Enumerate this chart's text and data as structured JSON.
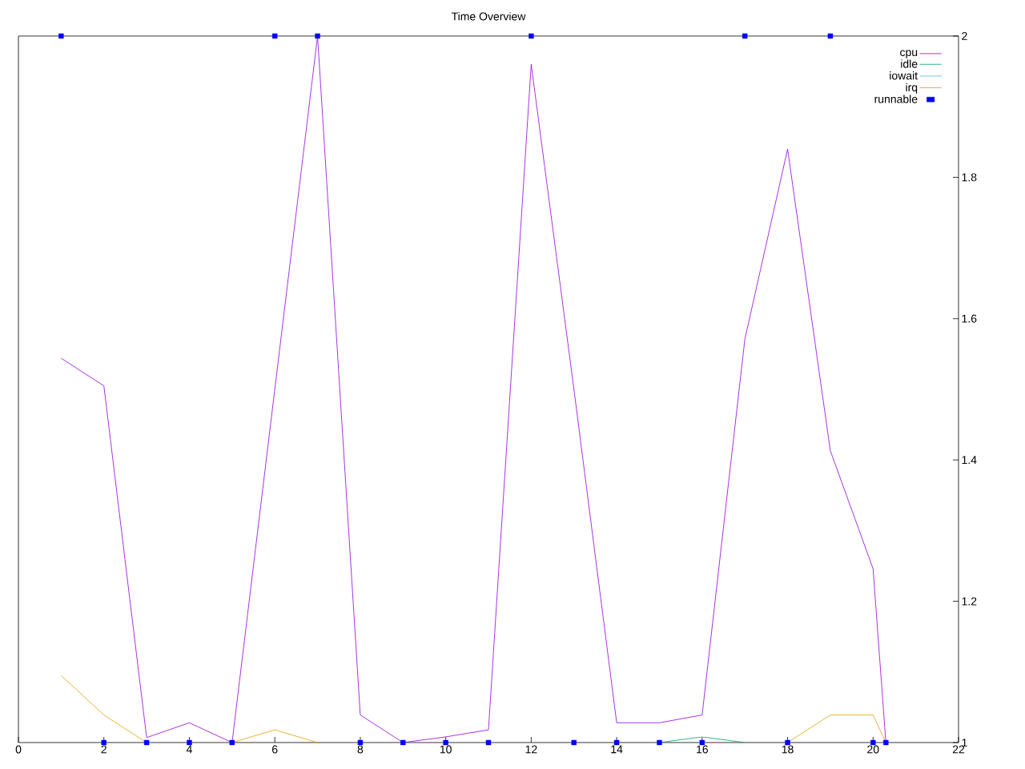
{
  "chart_data": {
    "type": "line",
    "title": "Time Overview",
    "xlim": [
      0,
      22
    ],
    "xticks": [
      0,
      2,
      4,
      6,
      8,
      10,
      12,
      14,
      16,
      18,
      20,
      22
    ],
    "ylim": [
      1,
      2
    ],
    "yticks": [
      1,
      1.2,
      1.4,
      1.6,
      1.8,
      2
    ],
    "grid": false,
    "legend": "top right",
    "series": [
      {
        "name": "cpu",
        "color": "#9400d3",
        "x": [
          1,
          2,
          3,
          4,
          5,
          6,
          7,
          8,
          9,
          10,
          11,
          12,
          13,
          14,
          15,
          16,
          17,
          18,
          19,
          20,
          20.3
        ],
        "values": [
          1.544,
          1.505,
          1.007,
          1.028,
          1.0,
          1.5,
          2.0,
          1.039,
          1.0,
          1.008,
          1.018,
          1.96,
          1.5,
          1.028,
          1.028,
          1.039,
          1.571,
          1.84,
          1.413,
          1.246,
          1.0
        ]
      },
      {
        "name": "idle",
        "color": "#009e73",
        "x": [
          15,
          16,
          17
        ],
        "values": [
          1.0,
          1.008,
          1.0
        ]
      },
      {
        "name": "iowait",
        "color": "#56b4e9"
      },
      {
        "name": "irq",
        "color": "#e69f00",
        "x": [
          1,
          2,
          3,
          4,
          5,
          6,
          7,
          12,
          18,
          19,
          20,
          20.3
        ],
        "values": [
          1.095,
          1.039,
          1.0,
          null,
          1.0,
          1.018,
          1.0,
          null,
          1.0,
          1.039,
          1.039,
          1.0
        ]
      },
      {
        "name": "runnable",
        "color": "#0000ff",
        "type": "scatter",
        "marker": "square",
        "x": [
          1,
          2,
          3,
          4,
          5,
          6,
          7,
          8,
          9,
          10,
          11,
          12,
          13,
          14,
          15,
          16,
          17,
          18,
          19,
          20,
          20.3
        ],
        "values": [
          2,
          1,
          1,
          1,
          1,
          2,
          2,
          1,
          1,
          1,
          1,
          2,
          1,
          1,
          1,
          1,
          2,
          1,
          2,
          1,
          1
        ]
      }
    ]
  }
}
